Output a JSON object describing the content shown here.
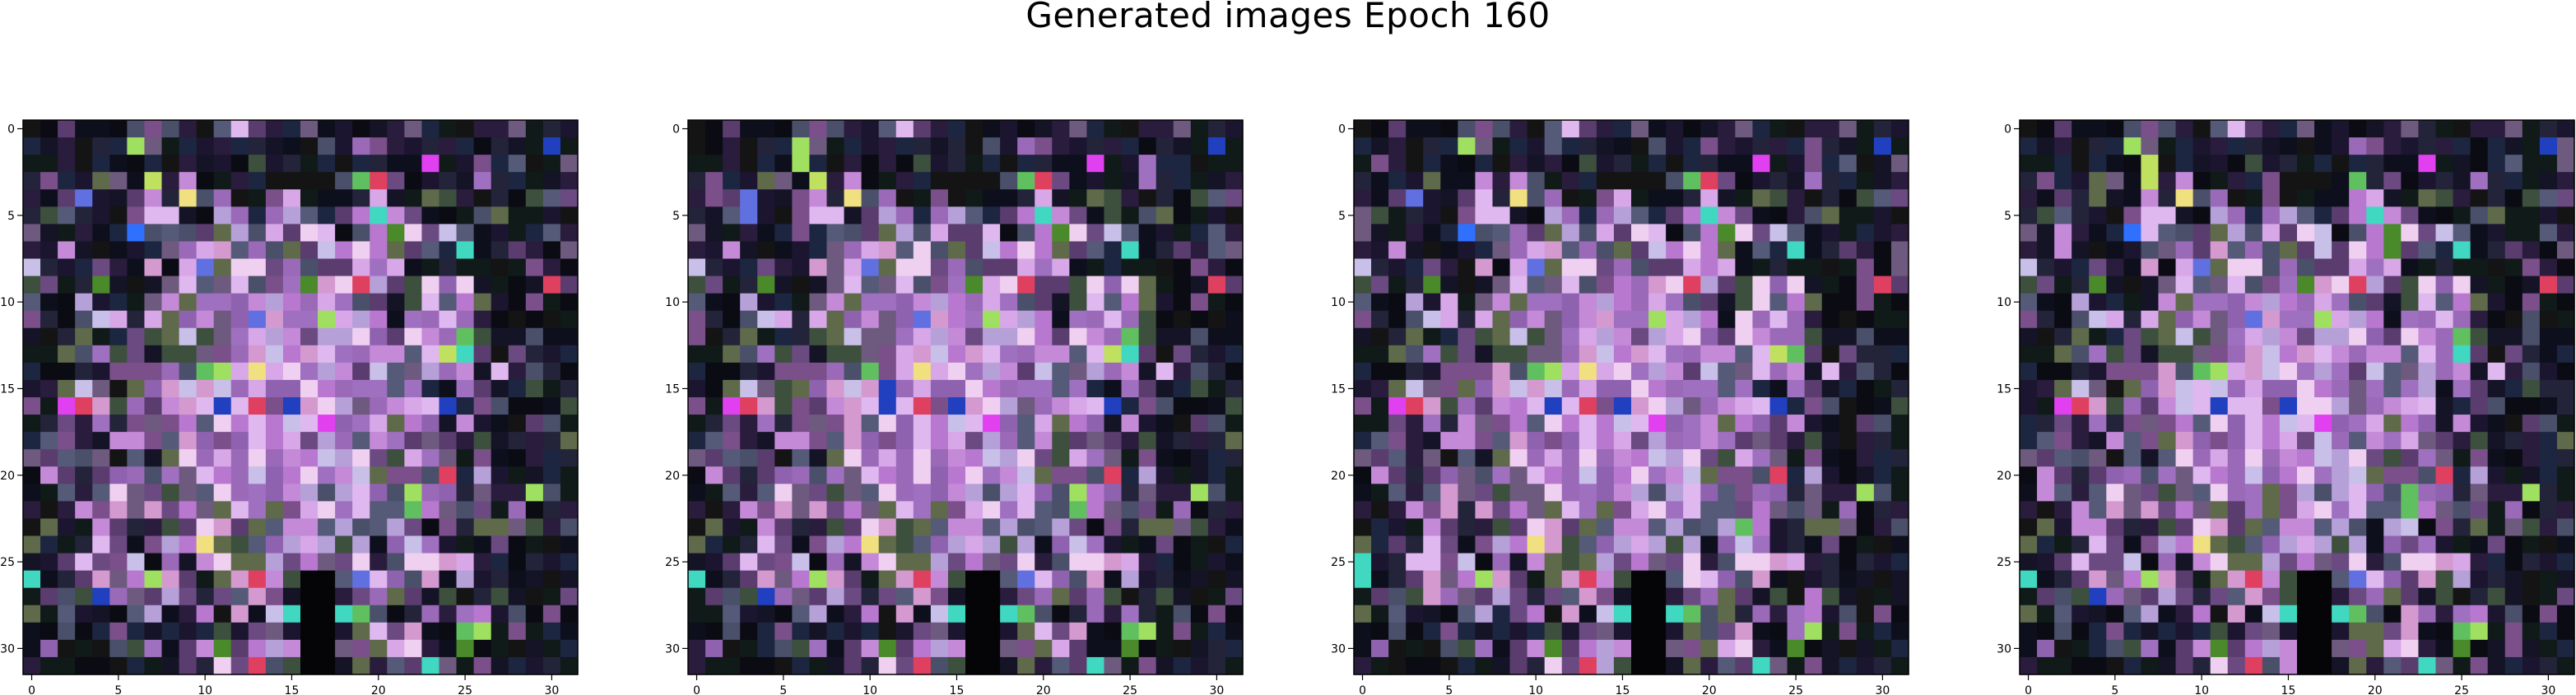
{
  "title": "Generated images Epoch 160",
  "chart_data": [
    {
      "type": "heatmap",
      "panel": 1,
      "rows": 32,
      "cols": 32,
      "x_ticks": [
        0,
        5,
        10,
        15,
        20,
        25,
        30
      ],
      "y_ticks": [
        0,
        5,
        10,
        15,
        20,
        25,
        30
      ],
      "xlim": [
        -0.5,
        31.5
      ],
      "ylim": [
        31.5,
        -0.5
      ],
      "grid": false
    },
    {
      "type": "heatmap",
      "panel": 2,
      "rows": 32,
      "cols": 32,
      "x_ticks": [
        0,
        5,
        10,
        15,
        20,
        25,
        30
      ],
      "y_ticks": [
        0,
        5,
        10,
        15,
        20,
        25,
        30
      ],
      "xlim": [
        -0.5,
        31.5
      ],
      "ylim": [
        31.5,
        -0.5
      ],
      "grid": false
    },
    {
      "type": "heatmap",
      "panel": 3,
      "rows": 32,
      "cols": 32,
      "x_ticks": [
        0,
        5,
        10,
        15,
        20,
        25,
        30
      ],
      "y_ticks": [
        0,
        5,
        10,
        15,
        20,
        25,
        30
      ],
      "xlim": [
        -0.5,
        31.5
      ],
      "ylim": [
        31.5,
        -0.5
      ],
      "grid": false
    },
    {
      "type": "heatmap",
      "panel": 4,
      "rows": 32,
      "cols": 32,
      "x_ticks": [
        0,
        5,
        10,
        15,
        20,
        25,
        30
      ],
      "y_ticks": [
        0,
        5,
        10,
        15,
        20,
        25,
        30
      ],
      "xlim": [
        -0.5,
        31.5
      ],
      "ylim": [
        31.5,
        -0.5
      ],
      "grid": false
    }
  ],
  "palette": {
    "dark": [
      "#0b0b14",
      "#141426",
      "#1c1530",
      "#101a18",
      "#23233a",
      "#0e0f1d",
      "#1d2640",
      "#2a1c3c",
      "#141414"
    ],
    "mid": [
      "#5a3d6e",
      "#6b4a82",
      "#4a4f6a",
      "#5f6a4a",
      "#6e5a7e",
      "#3d4f3d",
      "#7a4f8a",
      "#555a78"
    ],
    "bright": [
      "#c48ad8",
      "#d8a7e8",
      "#b978d0",
      "#e0b8f0",
      "#a070c0",
      "#c8c0e8",
      "#9a6ab8",
      "#d49ad0",
      "#b6a0d8",
      "#f0d0f0",
      "#8f62b0"
    ],
    "accents": [
      "#e040f0",
      "#4a8a2a",
      "#c0e060",
      "#40d8c0",
      "#e04060",
      "#ff60a0",
      "#6070e0",
      "#60c060",
      "#f0e080",
      "#3070ff",
      "#a0e060",
      "#2040c0"
    ]
  }
}
